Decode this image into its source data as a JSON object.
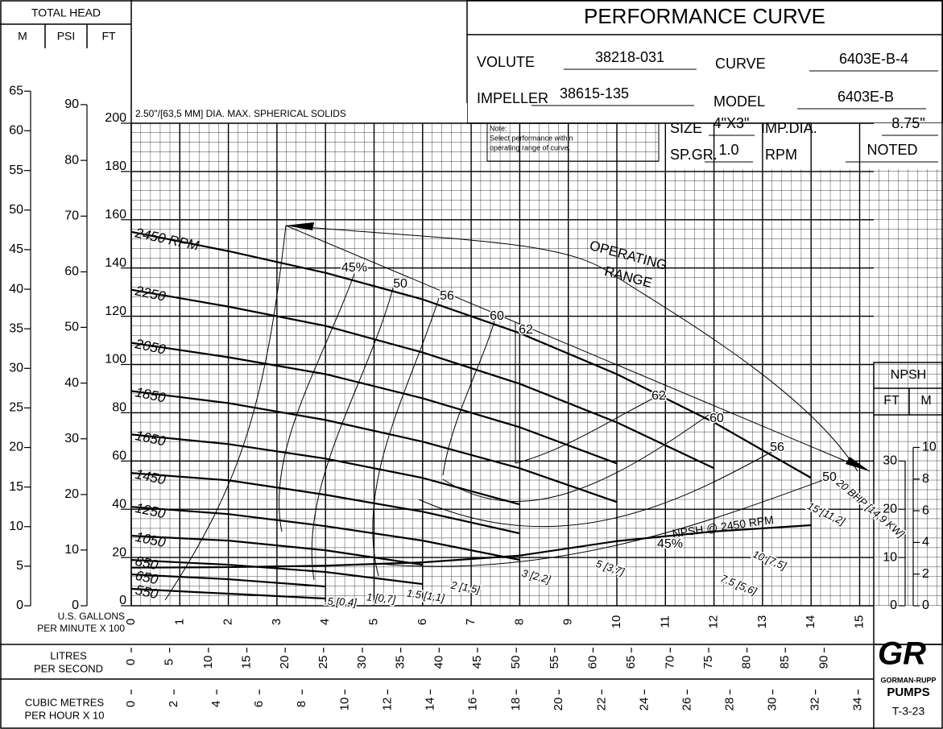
{
  "chart_data": {
    "type": "line",
    "total_head": "TOTAL HEAD",
    "ylabel": "FT",
    "x": [
      0,
      2,
      4,
      6,
      8,
      10,
      12,
      14
    ],
    "xlim": [
      0,
      15
    ],
    "xticks": [
      0,
      1,
      2,
      3,
      4,
      5,
      6,
      7,
      8,
      9,
      10,
      11,
      12,
      13,
      14,
      15
    ],
    "xlabel": [
      "U.S. GALLONS",
      "PER MINUTE X 100"
    ],
    "ylim": [
      0,
      200
    ],
    "yticks": [
      0,
      20,
      40,
      60,
      80,
      100,
      120,
      140,
      160,
      180,
      200
    ],
    "y2lim": [
      0,
      100
    ],
    "y2ticks": [
      0,
      10,
      20,
      30
    ],
    "grid": true,
    "m_axis": {
      "title": "M",
      "ticks": [
        {
          "value": 0,
          "label": "0"
        },
        {
          "value": 16.4,
          "label": "5"
        },
        {
          "value": 32.8,
          "label": "10"
        },
        {
          "value": 49.2,
          "label": "15"
        },
        {
          "value": 65.6,
          "label": "20"
        },
        {
          "value": 82.0,
          "label": "25"
        },
        {
          "value": 98.4,
          "label": "30"
        },
        {
          "value": 114.8,
          "label": "35"
        },
        {
          "value": 131.2,
          "label": "40"
        },
        {
          "value": 147.6,
          "label": "45"
        },
        {
          "value": 164.0,
          "label": "50"
        },
        {
          "value": 180.4,
          "label": "55"
        },
        {
          "value": 196.9,
          "label": "60"
        },
        {
          "value": 213.3,
          "label": "65"
        }
      ]
    },
    "psi_axis": {
      "title": "PSI",
      "ticks": [
        {
          "value": 0,
          "label": "0"
        },
        {
          "value": 23.1,
          "label": "10"
        },
        {
          "value": 46.1,
          "label": "20"
        },
        {
          "value": 69.2,
          "label": "30"
        },
        {
          "value": 92.3,
          "label": "40"
        },
        {
          "value": 115.4,
          "label": "50"
        },
        {
          "value": 138.4,
          "label": "60"
        },
        {
          "value": 161.5,
          "label": "70"
        },
        {
          "value": 184.6,
          "label": "80"
        },
        {
          "value": 207.7,
          "label": "90"
        }
      ]
    },
    "npsh_axis": {
      "title": "NPSH",
      "ft_title": "FT",
      "m_title": "M",
      "m_ticks": [
        {
          "value": 0,
          "label": "0"
        },
        {
          "value": 6.56,
          "label": "2"
        },
        {
          "value": 13.12,
          "label": "4"
        },
        {
          "value": 19.69,
          "label": "6"
        },
        {
          "value": 26.25,
          "label": "8"
        },
        {
          "value": 32.81,
          "label": "10"
        }
      ]
    },
    "lps_axis": {
      "title": [
        "LITRES",
        "PER SECOND"
      ],
      "ticks": [
        {
          "value": 0,
          "label": "0"
        },
        {
          "value": 0.79,
          "label": "5"
        },
        {
          "value": 1.59,
          "label": "10"
        },
        {
          "value": 2.38,
          "label": "15"
        },
        {
          "value": 3.17,
          "label": "20"
        },
        {
          "value": 3.96,
          "label": "25"
        },
        {
          "value": 4.76,
          "label": "30"
        },
        {
          "value": 5.55,
          "label": "35"
        },
        {
          "value": 6.34,
          "label": "40"
        },
        {
          "value": 7.13,
          "label": "45"
        },
        {
          "value": 7.93,
          "label": "50"
        },
        {
          "value": 8.72,
          "label": "55"
        },
        {
          "value": 9.51,
          "label": "60"
        },
        {
          "value": 10.3,
          "label": "65"
        },
        {
          "value": 11.1,
          "label": "70"
        },
        {
          "value": 11.89,
          "label": "75"
        },
        {
          "value": 12.68,
          "label": "80"
        },
        {
          "value": 13.47,
          "label": "85"
        },
        {
          "value": 14.27,
          "label": "90"
        }
      ]
    },
    "m3h_axis": {
      "title": [
        "CUBIC METRES",
        "PER HOUR X 10"
      ],
      "ticks": [
        {
          "value": 0,
          "label": "0"
        },
        {
          "value": 0.88,
          "label": "2"
        },
        {
          "value": 1.76,
          "label": "4"
        },
        {
          "value": 2.64,
          "label": "6"
        },
        {
          "value": 3.52,
          "label": "8"
        },
        {
          "value": 4.4,
          "label": "10"
        },
        {
          "value": 5.28,
          "label": "12"
        },
        {
          "value": 6.16,
          "label": "14"
        },
        {
          "value": 7.04,
          "label": "16"
        },
        {
          "value": 7.93,
          "label": "18"
        },
        {
          "value": 8.81,
          "label": "20"
        },
        {
          "value": 9.69,
          "label": "22"
        },
        {
          "value": 10.57,
          "label": "24"
        },
        {
          "value": 11.45,
          "label": "26"
        },
        {
          "value": 12.33,
          "label": "28"
        },
        {
          "value": 13.21,
          "label": "30"
        },
        {
          "value": 14.09,
          "label": "32"
        },
        {
          "value": 14.97,
          "label": "34"
        }
      ]
    },
    "series": [
      {
        "name": "2450 RPM",
        "color": "#000000",
        "values": [
          155,
          147,
          138,
          127,
          113,
          96,
          76,
          53
        ]
      },
      {
        "name": "2250",
        "color": "#000000",
        "values": [
          131,
          124,
          116,
          105,
          92,
          76,
          57,
          null
        ]
      },
      {
        "name": "2050",
        "color": "#000000",
        "values": [
          109,
          103,
          96,
          86,
          74,
          59,
          null,
          null
        ]
      },
      {
        "name": "1850",
        "color": "#000000",
        "values": [
          89,
          84,
          77,
          68,
          57,
          43,
          null,
          null
        ]
      },
      {
        "name": "1650",
        "color": "#000000",
        "values": [
          71,
          67,
          61,
          53,
          42,
          null,
          null,
          null
        ]
      },
      {
        "name": "1450",
        "color": "#000000",
        "values": [
          55,
          52,
          46,
          39,
          30,
          null,
          null,
          null
        ]
      },
      {
        "name": "1250",
        "color": "#000000",
        "values": [
          41,
          38,
          33,
          27,
          19,
          null,
          null,
          null
        ]
      },
      {
        "name": "1050",
        "color": "#000000",
        "values": [
          29,
          27,
          23,
          17,
          null,
          null,
          null,
          null
        ]
      },
      {
        "name": "850",
        "color": "#000000",
        "values": [
          19,
          17,
          14,
          9,
          null,
          null,
          null,
          null
        ]
      },
      {
        "name": "650",
        "color": "#000000",
        "values": [
          13,
          11,
          8,
          null,
          null,
          null,
          null,
          null
        ]
      },
      {
        "name": "550",
        "color": "#000000",
        "values": [
          7,
          5,
          3,
          null,
          null,
          null,
          null,
          null
        ]
      },
      {
        "name": "NPSH @ 2450 RPM",
        "color": "#000000",
        "axis": "y2",
        "values": [
          7.9,
          8,
          8.3,
          9,
          10.4,
          13.4,
          15.4,
          16.7
        ]
      }
    ],
    "efficiency_labels": [
      "45%",
      "50",
      "56",
      "60",
      "62",
      "62",
      "60",
      "56",
      "50",
      "45%"
    ],
    "power_labels": [
      "20 BHP [14,9 KW]",
      "15 [11,2]",
      "10 [7,5]",
      "7.5 [5,6]",
      "5 [3,7]",
      "3 [2,2]",
      "2 [1,5]",
      "1.5 [1,1]",
      "1 [0,7]",
      ".5 [0,4]"
    ],
    "operating_range": [
      "OPERATING",
      "RANGE"
    ],
    "solids_note": "2.50\"/[63,5 MM] DIA. MAX. SPHERICAL SOLIDS",
    "note": [
      "Note:",
      "Select performance within",
      "operating range of curve."
    ]
  },
  "header": {
    "title": "PERFORMANCE CURVE",
    "fields": [
      {
        "label": "VOLUTE",
        "value": "38218-031"
      },
      {
        "label": "CURVE",
        "value": "6403E-B-4"
      },
      {
        "label": "IMPELLER",
        "value": "38615-135"
      },
      {
        "label": "MODEL",
        "value": "6403E-B"
      },
      {
        "label": "SIZE",
        "value": "4\"X3\""
      },
      {
        "label": "IMP.DIA.",
        "value": "8.75\""
      },
      {
        "label": "SP.GR.",
        "value": "1.0"
      },
      {
        "label": "RPM",
        "value": "NOTED"
      }
    ]
  },
  "logo": {
    "mark": "GR",
    "text": [
      "GORMAN-RUPP",
      "PUMPS"
    ]
  },
  "footer_code": "T-3-23"
}
